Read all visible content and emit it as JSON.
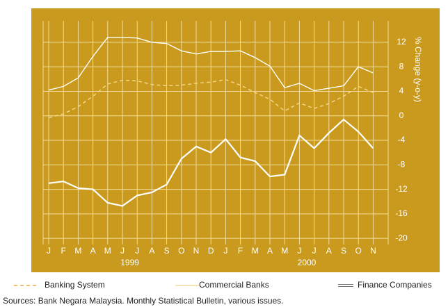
{
  "chart_data": {
    "type": "line",
    "y_axis_label": "% Change (y-o-y)",
    "categories": [
      "J",
      "F",
      "M",
      "A",
      "M",
      "J",
      "J",
      "A",
      "S",
      "O",
      "N",
      "D",
      "J",
      "F",
      "M",
      "A",
      "M",
      "J",
      "J",
      "A",
      "S",
      "O",
      "N"
    ],
    "year_labels": [
      "1999",
      "2000"
    ],
    "series": [
      {
        "name": "Banking System",
        "color": "#f5d98a",
        "style": "dashed",
        "values": [
          -0.3,
          0.3,
          1.5,
          3.2,
          5.2,
          5.8,
          5.7,
          5.1,
          4.9,
          5.0,
          5.3,
          5.5,
          5.9,
          5.0,
          3.8,
          2.7,
          0.8,
          2.1,
          1.2,
          2.0,
          3.2,
          4.8,
          3.8
        ]
      },
      {
        "name": "Commercial Banks",
        "color": "#ffffff",
        "style": "solid",
        "values": [
          4.2,
          4.8,
          6.2,
          9.7,
          12.8,
          12.8,
          12.7,
          12.0,
          11.8,
          10.6,
          10.1,
          10.5,
          10.5,
          10.6,
          9.5,
          8.1,
          4.6,
          5.3,
          4.1,
          4.5,
          4.9,
          8.0,
          7.0
        ]
      },
      {
        "name": "Finance Companies",
        "color": "#ffffff",
        "style": "double",
        "values": [
          -11.0,
          -10.7,
          -11.8,
          -12.0,
          -14.2,
          -14.7,
          -13.0,
          -12.5,
          -11.2,
          -7.0,
          -5.0,
          -6.0,
          -3.8,
          -6.8,
          -7.4,
          -9.9,
          -9.6,
          -3.2,
          -5.3,
          -2.8,
          -0.6,
          -2.6,
          -5.3
        ]
      }
    ],
    "ylim": [
      -21,
      15.5
    ],
    "yticks": [
      -20,
      -16,
      -12,
      -8,
      -4,
      0,
      4,
      8,
      12
    ],
    "grid": true,
    "source": "Sources: Bank Negara Malaysia. Monthly Statistical Bulletin, various issues."
  }
}
